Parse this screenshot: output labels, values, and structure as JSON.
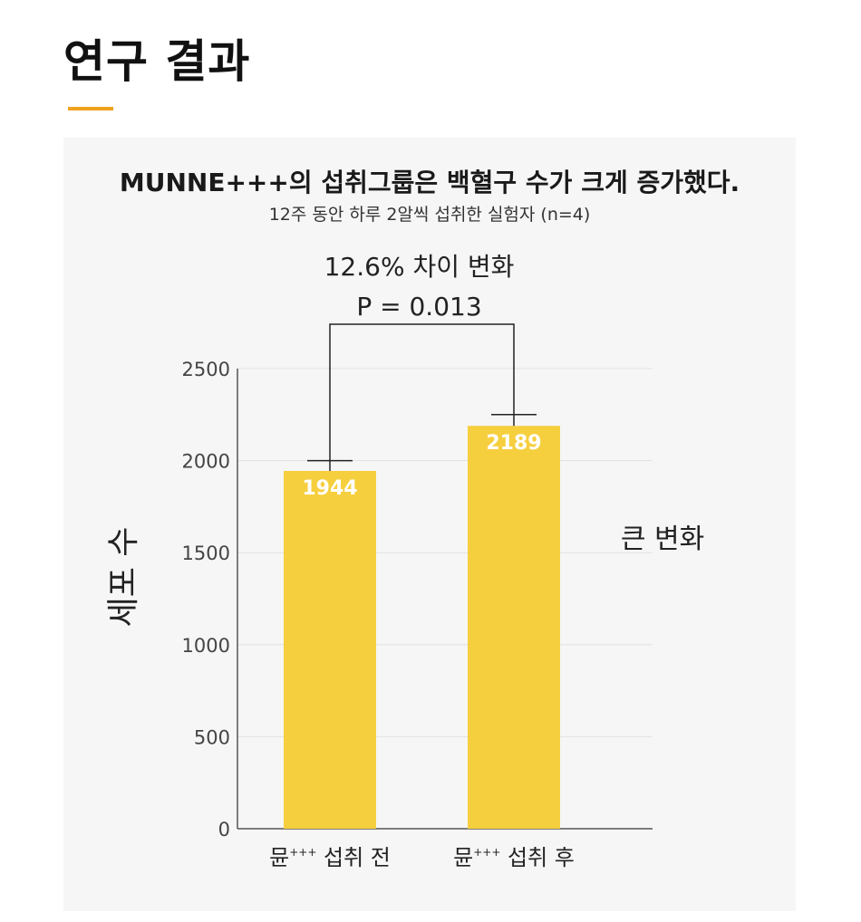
{
  "header": {
    "title": "연구 결과"
  },
  "colors": {
    "accent": "#f0a21e",
    "bar": "#f6cf3e",
    "panel": "#f6f6f6"
  },
  "chart_data": {
    "type": "bar",
    "title": "MUNNE+++의 섭취그룹은 백혈구 수가 크게 증가했다.",
    "subtitle": "12주 동안 하루 2알씩 섭취한 실험자 (n=4)",
    "categories": [
      {
        "base": "뮨",
        "sup": "+++",
        "rest": " 섭취 전"
      },
      {
        "base": "뮨",
        "sup": "+++",
        "rest": " 섭취 후"
      }
    ],
    "values": [
      1944,
      2189
    ],
    "data_labels": [
      "1944",
      "2189"
    ],
    "error_top": [
      2000,
      2250
    ],
    "ylabel": "세포 수",
    "ylim": [
      0,
      2500
    ],
    "yticks": [
      "0",
      "500",
      "1000",
      "1500",
      "2000",
      "2500"
    ],
    "grid": true,
    "annotation": {
      "line1": "12.6% 차이 변화",
      "line2": "P = 0.013"
    },
    "side_note": "큰 변화"
  }
}
